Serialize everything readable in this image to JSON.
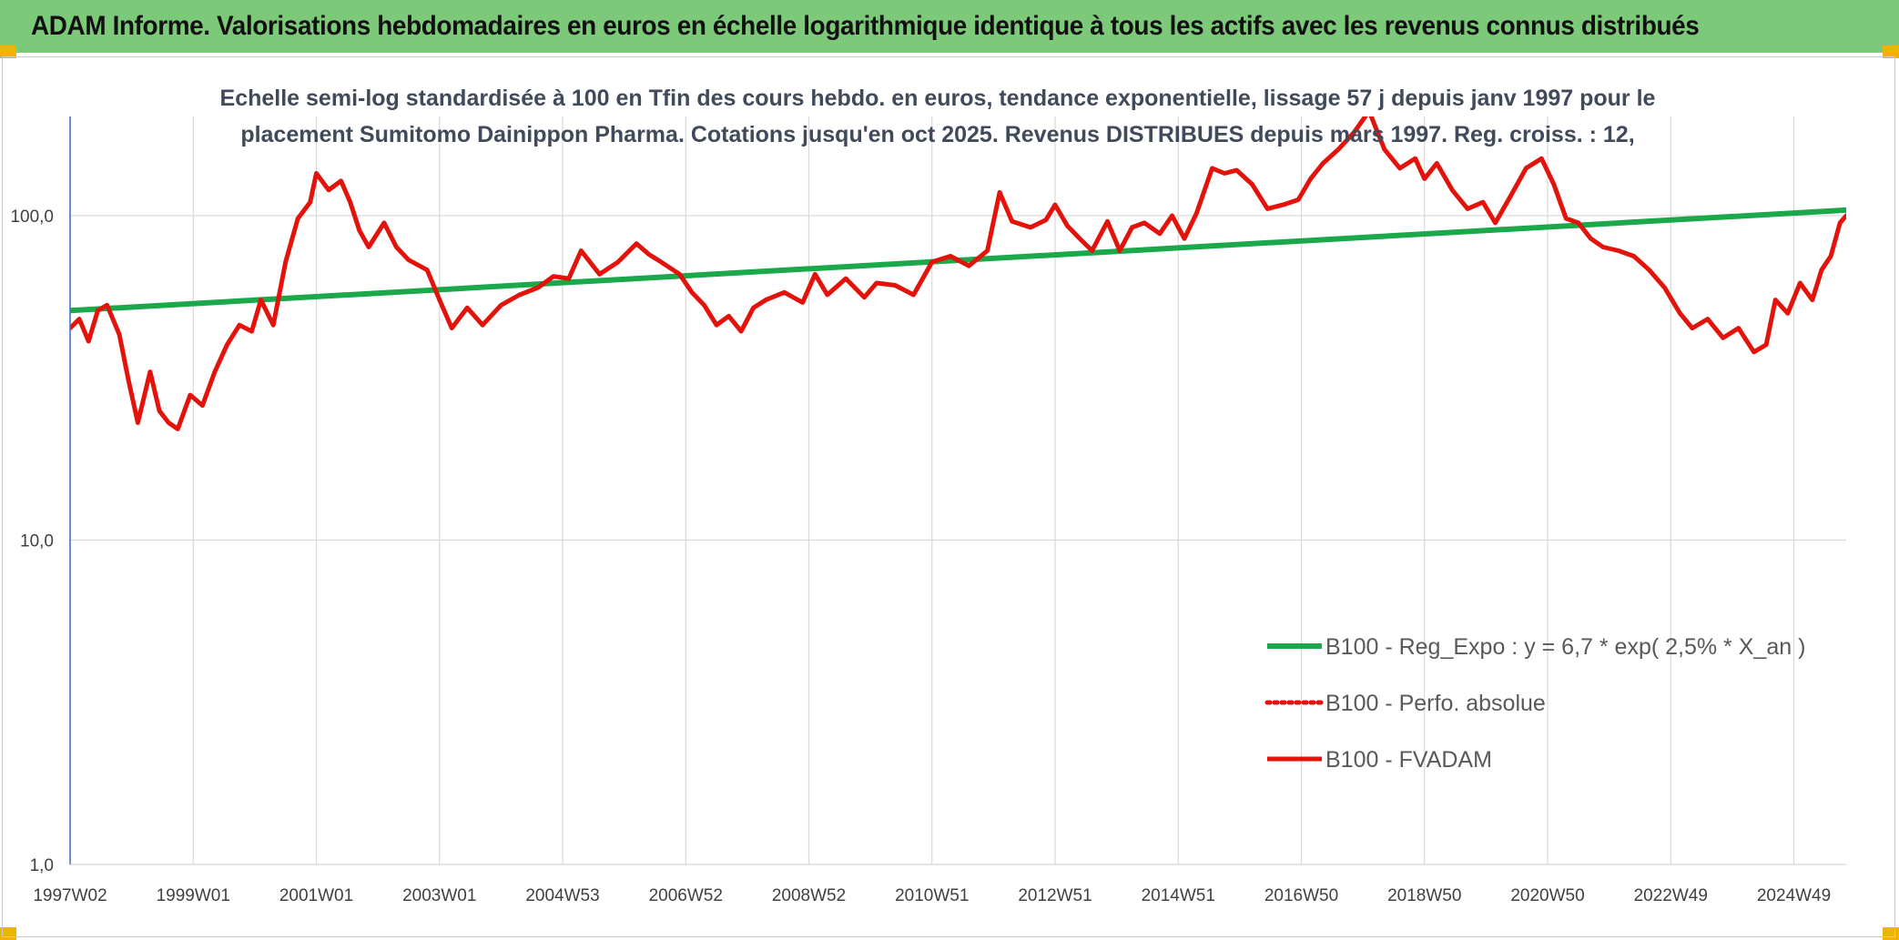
{
  "header": {
    "title": "ADAM Informe. Valorisations hebdomadaires en euros en échelle logarithmique identique à tous les actifs avec les revenus connus distribués"
  },
  "chart_data": {
    "type": "line",
    "title": "Echelle semi-log standardisée à 100 en Tfin des cours hebdo. en euros, tendance exponentielle, lissage 57 j depuis janv 1997 pour le placement Sumitomo Dainippon Pharma. Cotations jusqu'en oct 2025. Revenus DISTRIBUES depuis mars 1997. Reg. croiss. : 12,",
    "xlabel": "",
    "ylabel": "",
    "y_scale": "log",
    "ylim": [
      1,
      200
    ],
    "y_ticks": [
      "1,0",
      "10,0",
      "100,0"
    ],
    "y_tick_values": [
      1,
      10,
      100
    ],
    "x_range": [
      1997.0,
      2025.85
    ],
    "x_tick_labels": [
      "1997W02",
      "1999W01",
      "2001W01",
      "2003W01",
      "2004W53",
      "2006W52",
      "2008W52",
      "2010W51",
      "2012W51",
      "2014W51",
      "2016W50",
      "2018W50",
      "2020W50",
      "2022W49",
      "2024W49"
    ],
    "x_tick_years": [
      1997.0,
      1999.0,
      2001.0,
      2003.0,
      2005.0,
      2007.0,
      2009.0,
      2011.0,
      2013.0,
      2015.0,
      2017.0,
      2019.0,
      2021.0,
      2023.0,
      2025.0
    ],
    "grid": true,
    "legend_position": "bottom-right",
    "series": [
      {
        "name": "B100 - Reg_Expo : y = 6,7 * exp( 2,5% *  X_an )",
        "color": "#1aa84a",
        "style": "solid",
        "x": [
          1997.0,
          2025.85
        ],
        "y": [
          51,
          104
        ]
      },
      {
        "name": "B100 - Perfo. absolue",
        "color": "#e3120b",
        "style": "dotted",
        "x": [],
        "y": []
      },
      {
        "name": "B100 - FVADAM",
        "color": "#e3120b",
        "style": "solid",
        "x": [
          1997.0,
          1997.15,
          1997.3,
          1997.45,
          1997.6,
          1997.8,
          1997.95,
          1998.1,
          1998.3,
          1998.45,
          1998.6,
          1998.75,
          1998.95,
          1999.15,
          1999.35,
          1999.55,
          1999.75,
          1999.95,
          2000.1,
          2000.3,
          2000.5,
          2000.7,
          2000.9,
          2001.0,
          2001.2,
          2001.4,
          2001.55,
          2001.7,
          2001.85,
          2002.1,
          2002.3,
          2002.5,
          2002.8,
          2003.0,
          2003.2,
          2003.45,
          2003.7,
          2004.0,
          2004.3,
          2004.6,
          2004.85,
          2005.1,
          2005.3,
          2005.6,
          2005.9,
          2006.2,
          2006.4,
          2006.6,
          2006.9,
          2007.1,
          2007.3,
          2007.5,
          2007.7,
          2007.9,
          2008.1,
          2008.3,
          2008.6,
          2008.9,
          2009.1,
          2009.3,
          2009.6,
          2009.9,
          2010.1,
          2010.4,
          2010.7,
          2011.0,
          2011.3,
          2011.6,
          2011.9,
          2012.1,
          2012.3,
          2012.6,
          2012.85,
          2013.0,
          2013.2,
          2013.4,
          2013.6,
          2013.85,
          2014.05,
          2014.25,
          2014.45,
          2014.7,
          2014.9,
          2015.1,
          2015.3,
          2015.55,
          2015.75,
          2015.95,
          2016.2,
          2016.45,
          2016.7,
          2016.95,
          2017.15,
          2017.35,
          2017.6,
          2017.85,
          2018.1,
          2018.35,
          2018.6,
          2018.85,
          2019.0,
          2019.2,
          2019.45,
          2019.7,
          2019.95,
          2020.15,
          2020.4,
          2020.65,
          2020.9,
          2021.1,
          2021.3,
          2021.5,
          2021.7,
          2021.9,
          2022.15,
          2022.4,
          2022.65,
          2022.9,
          2023.15,
          2023.35,
          2023.6,
          2023.85,
          2024.1,
          2024.35,
          2024.55,
          2024.7,
          2024.9,
          2025.1,
          2025.3,
          2025.45,
          2025.6,
          2025.75,
          2025.85
        ],
        "y": [
          45,
          48,
          41,
          51,
          53,
          43,
          31,
          23,
          33,
          25,
          23,
          22,
          28,
          26,
          33,
          40,
          46,
          44,
          55,
          46,
          72,
          98,
          110,
          135,
          120,
          128,
          110,
          90,
          80,
          95,
          80,
          73,
          68,
          55,
          45,
          52,
          46,
          53,
          57,
          60,
          65,
          64,
          78,
          66,
          72,
          82,
          76,
          72,
          66,
          58,
          53,
          46,
          49,
          44,
          52,
          55,
          58,
          54,
          66,
          57,
          64,
          56,
          62,
          61,
          57,
          72,
          75,
          70,
          78,
          118,
          96,
          92,
          97,
          108,
          93,
          85,
          78,
          96,
          78,
          92,
          95,
          88,
          100,
          85,
          102,
          140,
          135,
          138,
          125,
          105,
          108,
          112,
          130,
          145,
          160,
          180,
          210,
          160,
          140,
          150,
          130,
          145,
          120,
          105,
          110,
          95,
          115,
          140,
          150,
          125,
          98,
          95,
          85,
          80,
          78,
          75,
          68,
          60,
          50,
          45,
          48,
          42,
          45,
          38,
          40,
          55,
          50,
          62,
          55,
          68,
          75,
          95,
          100
        ]
      }
    ]
  }
}
